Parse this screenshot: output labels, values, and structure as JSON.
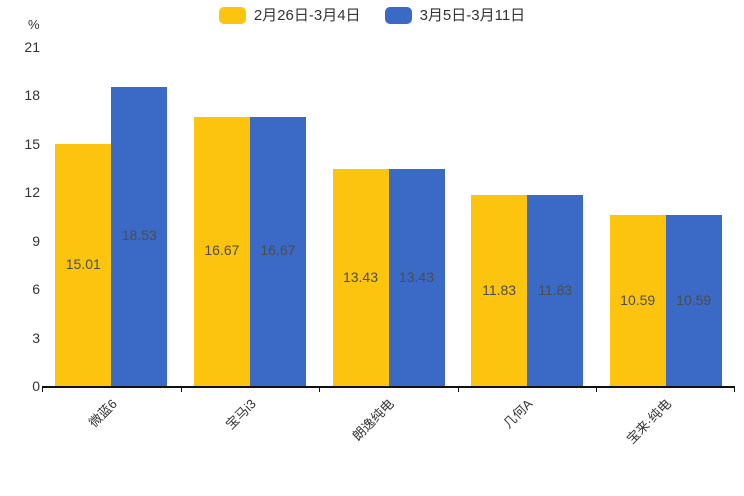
{
  "chart_data": {
    "type": "bar",
    "title": "",
    "unit_label": "%",
    "categories": [
      "微蓝6",
      "宝马i3",
      "朗逸纯电",
      "几何A",
      "宝来·纯电"
    ],
    "series": [
      {
        "name": "2月26日-3月4日",
        "color": "#FCC40F",
        "values": [
          15.01,
          16.67,
          13.43,
          11.83,
          10.59
        ]
      },
      {
        "name": "3月5日-3月11日",
        "color": "#3A69C6",
        "values": [
          18.53,
          16.67,
          13.43,
          11.83,
          10.59
        ]
      }
    ],
    "value_labels": [
      "15.01",
      "18.53",
      "16.67",
      "13.43",
      "11.83",
      "10.59"
    ],
    "ylim": [
      0,
      21
    ],
    "yticks": [
      0,
      3,
      6,
      9,
      12,
      15,
      18,
      21
    ],
    "grid": false,
    "legend_position": "top",
    "colors": {
      "axis": "#111111",
      "tick_text": "#333333",
      "value_label": "#4d4d4d",
      "background": "#ffffff"
    }
  }
}
